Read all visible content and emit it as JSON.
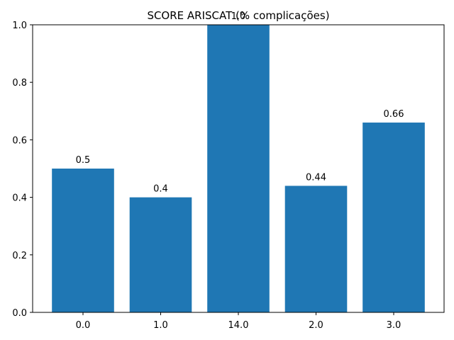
{
  "chart_data": {
    "type": "bar",
    "title": "SCORE ARISCAT (% complicações)",
    "xlabel": "",
    "ylabel": "",
    "categories": [
      "0.0",
      "1.0",
      "14.0",
      "2.0",
      "3.0"
    ],
    "values": [
      0.5,
      0.4,
      1.0,
      0.44,
      0.66
    ],
    "data_labels": [
      "0.5",
      "0.4",
      "1.0",
      "0.44",
      "0.66"
    ],
    "ylim": [
      0,
      1.0
    ],
    "y_ticks": [
      "0.0",
      "0.2",
      "0.4",
      "0.6",
      "0.8",
      "1.0"
    ],
    "grid": false,
    "bar_color": "#1f77b4"
  }
}
